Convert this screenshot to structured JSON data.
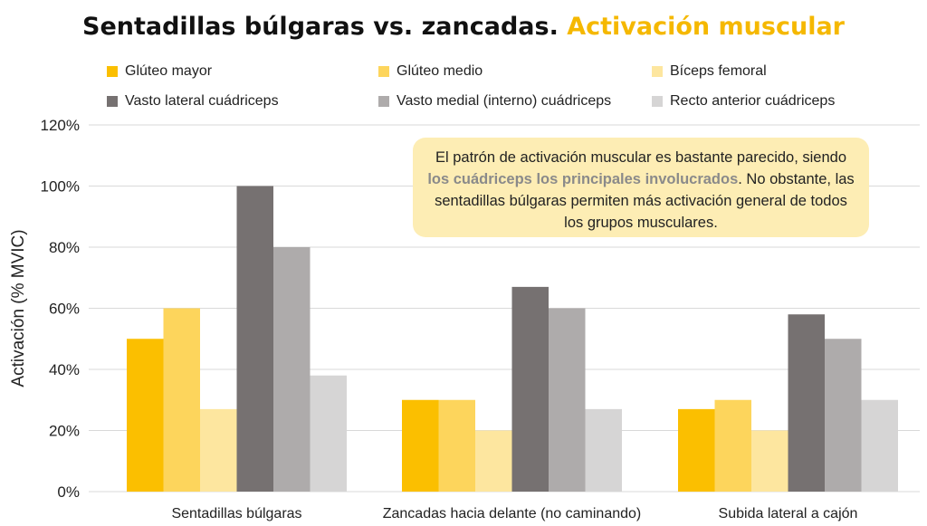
{
  "title": {
    "main": "Sentadillas búlgaras vs. zancadas.",
    "highlight": "Activación muscular"
  },
  "note": {
    "before": "El patrón de activación muscular es bastante parecido, siendo ",
    "bold": "los cuádriceps los principales involucrados",
    "after": ". No obstante, las sentadillas búlgaras permiten más activación general de todos los grupos musculares."
  },
  "colors": {
    "title_accent": "#f5b800",
    "note_background": "#fdedb4"
  },
  "chart_data": {
    "type": "bar",
    "ylabel": "Activación (% MVIC)",
    "ylim": [
      0,
      120
    ],
    "yticks": [
      "0%",
      "20%",
      "40%",
      "60%",
      "80%",
      "100%",
      "120%"
    ],
    "grid": true,
    "legend_position": "top",
    "categories": [
      "Sentadillas búlgaras",
      "Zancadas hacia delante (no caminando)",
      "Subida lateral a cajón"
    ],
    "series": [
      {
        "name": "Glúteo mayor",
        "color": "#fbbf00",
        "values": [
          50,
          30,
          27
        ]
      },
      {
        "name": "Glúteo medio",
        "color": "#fdd55c",
        "values": [
          60,
          30,
          30
        ]
      },
      {
        "name": "Bíceps femoral",
        "color": "#fde69f",
        "values": [
          27,
          20,
          20
        ]
      },
      {
        "name": "Vasto lateral cuádriceps",
        "color": "#767171",
        "values": [
          100,
          67,
          58
        ]
      },
      {
        "name": "Vasto medial (interno) cuádriceps",
        "color": "#aeabab",
        "values": [
          80,
          60,
          50
        ]
      },
      {
        "name": "Recto anterior cuádriceps",
        "color": "#d6d5d5",
        "values": [
          38,
          27,
          30
        ]
      }
    ]
  }
}
